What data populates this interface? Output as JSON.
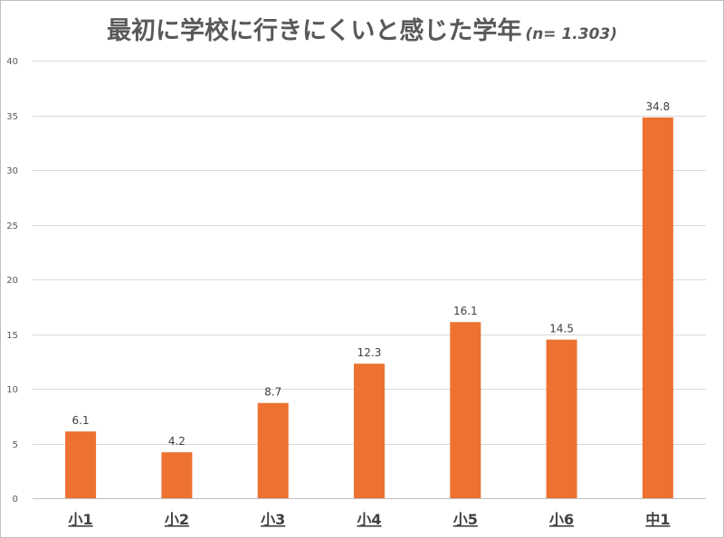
{
  "title": "最初に学校に行きにくいと感じた学年",
  "sample_note": "(n= 1.303)",
  "colors": {
    "bar": "#ED7131",
    "grid": "#d9d9d9",
    "text": "#595959"
  },
  "chart_data": {
    "type": "bar",
    "title": "最初に学校に行きにくいと感じた学年",
    "categories": [
      "小1",
      "小2",
      "小3",
      "小4",
      "小5",
      "小6",
      "中1"
    ],
    "values": [
      6.1,
      4.2,
      8.7,
      12.3,
      16.1,
      14.5,
      34.8
    ],
    "data_labels": [
      "6.1",
      "4.2",
      "8.7",
      "12.3",
      "16.1",
      "14.5",
      "34.8"
    ],
    "ylim": [
      0,
      40
    ],
    "yticks": [
      0,
      5,
      10,
      15,
      20,
      25,
      30,
      35,
      40
    ],
    "grid": true,
    "legend": "none"
  }
}
